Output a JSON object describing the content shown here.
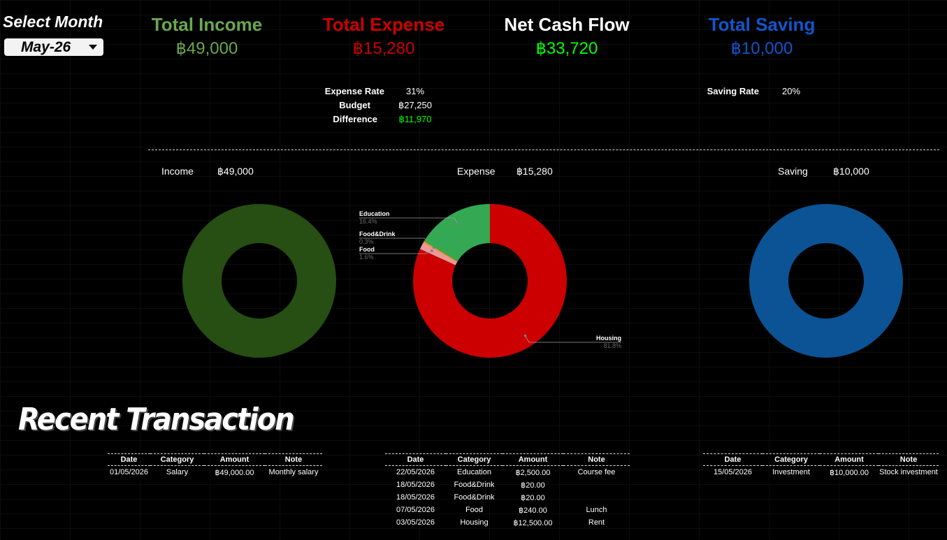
{
  "select_month": {
    "label": "Select Month",
    "value": "May-26"
  },
  "kpis": {
    "income": {
      "title": "Total Income",
      "value": "฿49,000",
      "color": "#6aa84f"
    },
    "expense": {
      "title": "Total Expense",
      "value": "฿15,280",
      "color": "#cc0000"
    },
    "net": {
      "title": "Net Cash Flow",
      "value": "฿33,720",
      "color": "#ffffff",
      "value_color": "#00ff00"
    },
    "saving": {
      "title": "Total Saving",
      "value": "฿10,000",
      "color": "#1155cc"
    }
  },
  "expense_stats": {
    "rate_label": "Expense Rate",
    "rate_value": "31%",
    "budget_label": "Budget",
    "budget_value": "฿27,250",
    "difference_label": "Difference",
    "difference_value": "฿11,970"
  },
  "saving_stats": {
    "rate_label": "Saving Rate",
    "rate_value": "20%"
  },
  "charts": {
    "income": {
      "label": "Income",
      "amount": "฿49,000"
    },
    "expense": {
      "label": "Expense",
      "amount": "฿15,280"
    },
    "saving": {
      "label": "Saving",
      "amount": "฿10,000"
    }
  },
  "chart_data": [
    {
      "type": "pie",
      "donut": true,
      "categories": [
        "Income"
      ],
      "values": [
        49000
      ],
      "colors": [
        "#274e13"
      ]
    },
    {
      "type": "pie",
      "donut": true,
      "categories": [
        "Housing",
        "Food",
        "Food&Drink",
        "Education"
      ],
      "values": [
        12500,
        240,
        40,
        2500
      ],
      "labels": [
        "81.8%",
        "1.6%",
        "0.3%",
        "16.4%"
      ],
      "colors": [
        "#cc0000",
        "#ea9999",
        "#ff9900",
        "#34a853"
      ]
    },
    {
      "type": "pie",
      "donut": true,
      "categories": [
        "Saving"
      ],
      "values": [
        10000
      ],
      "colors": [
        "#0b5394"
      ]
    }
  ],
  "recent": {
    "title": "Recent Transaction",
    "headers": [
      "Date",
      "Category",
      "Amount",
      "Note"
    ],
    "income": [
      [
        "01/05/2026",
        "Salary",
        "฿49,000.00",
        "Monthly salary"
      ]
    ],
    "expense": [
      [
        "22/05/2026",
        "Education",
        "฿2,500.00",
        "Course fee"
      ],
      [
        "18/05/2026",
        "Food&Drink",
        "฿20.00",
        ""
      ],
      [
        "18/05/2026",
        "Food&Drink",
        "฿20.00",
        ""
      ],
      [
        "07/05/2026",
        "Food",
        "฿240.00",
        "Lunch"
      ],
      [
        "03/05/2026",
        "Housing",
        "฿12,500.00",
        "Rent"
      ]
    ],
    "saving": [
      [
        "15/05/2026",
        "Investment",
        "฿10,000.00",
        "Stock investment"
      ]
    ]
  }
}
